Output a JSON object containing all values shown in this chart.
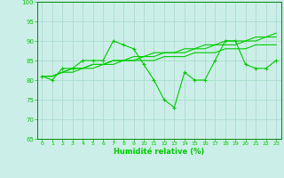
{
  "x": [
    0,
    1,
    2,
    3,
    4,
    5,
    6,
    7,
    8,
    9,
    10,
    11,
    12,
    13,
    14,
    15,
    16,
    17,
    18,
    19,
    20,
    21,
    22,
    23
  ],
  "line_main": [
    81,
    80,
    83,
    83,
    85,
    85,
    85,
    90,
    89,
    88,
    84,
    80,
    75,
    73,
    82,
    80,
    80,
    85,
    90,
    90,
    84,
    83,
    83,
    85
  ],
  "line_trend1": [
    81,
    81,
    82,
    83,
    83,
    84,
    84,
    85,
    85,
    85,
    86,
    86,
    87,
    87,
    87,
    88,
    88,
    89,
    89,
    89,
    90,
    90,
    91,
    91
  ],
  "line_trend2": [
    81,
    81,
    82,
    83,
    83,
    84,
    84,
    85,
    85,
    86,
    86,
    87,
    87,
    87,
    88,
    88,
    89,
    89,
    90,
    90,
    90,
    91,
    91,
    92
  ],
  "line_trend3": [
    81,
    81,
    82,
    82,
    83,
    83,
    84,
    84,
    85,
    85,
    85,
    85,
    86,
    86,
    86,
    87,
    87,
    87,
    88,
    88,
    88,
    89,
    89,
    89
  ],
  "bg_color": "#cceee8",
  "grid_color": "#aaddcc",
  "line_color": "#00cc00",
  "xlabel": "Humidité relative (%)",
  "ylim": [
    65,
    100
  ],
  "xlim": [
    -0.5,
    23.5
  ],
  "yticks": [
    65,
    70,
    75,
    80,
    85,
    90,
    95,
    100
  ],
  "xticks": [
    0,
    1,
    2,
    3,
    4,
    5,
    6,
    7,
    8,
    9,
    10,
    11,
    12,
    13,
    14,
    15,
    16,
    17,
    18,
    19,
    20,
    21,
    22,
    23
  ]
}
